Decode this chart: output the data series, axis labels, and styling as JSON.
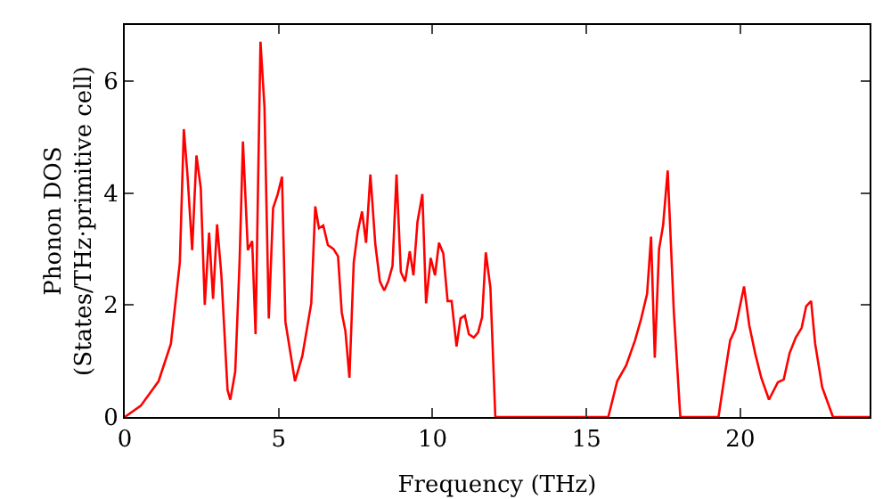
{
  "chart_data": {
    "type": "line",
    "xlabel": "Frequency (THz)",
    "ylabel": "Phonon DOS\n(States/THz·primitive cell)",
    "x": [
      0,
      0.52,
      1.1,
      1.5,
      1.79,
      1.92,
      2.04,
      2.19,
      2.33,
      2.47,
      2.6,
      2.74,
      2.87,
      3.0,
      3.14,
      3.34,
      3.43,
      3.59,
      3.73,
      3.84,
      4.0,
      4.14,
      4.25,
      4.41,
      4.54,
      4.68,
      4.82,
      4.97,
      5.11,
      5.22,
      5.53,
      5.77,
      6.06,
      6.19,
      6.31,
      6.45,
      6.6,
      6.78,
      6.93,
      7.05,
      7.17,
      7.3,
      7.44,
      7.57,
      7.71,
      7.84,
      7.98,
      8.14,
      8.29,
      8.43,
      8.56,
      8.7,
      8.83,
      8.97,
      9.11,
      9.26,
      9.38,
      9.51,
      9.67,
      9.79,
      9.94,
      10.08,
      10.21,
      10.35,
      10.49,
      10.62,
      10.78,
      10.91,
      11.05,
      11.18,
      11.34,
      11.48,
      11.61,
      11.73,
      11.88,
      12.04,
      15.71,
      16.0,
      16.29,
      16.58,
      16.78,
      16.97,
      17.1,
      17.22,
      17.36,
      17.49,
      17.64,
      17.84,
      18.05,
      19.29,
      19.48,
      19.67,
      19.83,
      20.12,
      20.29,
      20.48,
      20.68,
      20.93,
      21.22,
      21.41,
      21.6,
      21.8,
      21.99,
      22.14,
      22.3,
      22.43,
      22.66,
      23.01,
      24.2
    ],
    "series": [
      {
        "color": "#ff0000",
        "values": [
          0,
          0.2,
          0.64,
          1.31,
          2.76,
          5.14,
          4.31,
          2.98,
          4.67,
          4.09,
          2.0,
          3.29,
          2.11,
          3.44,
          2.53,
          0.48,
          0.31,
          0.81,
          2.76,
          4.92,
          2.98,
          3.14,
          1.48,
          6.7,
          5.53,
          1.76,
          3.73,
          3.98,
          4.29,
          1.7,
          0.64,
          1.09,
          2.03,
          3.76,
          3.37,
          3.42,
          3.07,
          3.0,
          2.87,
          1.87,
          1.53,
          0.7,
          2.76,
          3.31,
          3.67,
          3.11,
          4.33,
          3.09,
          2.42,
          2.26,
          2.42,
          2.7,
          4.33,
          2.59,
          2.42,
          2.96,
          2.53,
          3.48,
          3.98,
          2.03,
          2.84,
          2.53,
          3.11,
          2.92,
          2.07,
          2.07,
          1.26,
          1.76,
          1.81,
          1.48,
          1.42,
          1.51,
          1.78,
          2.94,
          2.31,
          0,
          0,
          0.64,
          0.92,
          1.37,
          1.76,
          2.2,
          3.22,
          1.06,
          3.0,
          3.42,
          4.4,
          1.87,
          0,
          0,
          0.7,
          1.37,
          1.56,
          2.33,
          1.64,
          1.14,
          0.7,
          0.31,
          0.62,
          0.67,
          1.14,
          1.42,
          1.59,
          1.98,
          2.07,
          1.31,
          0.53,
          0,
          0
        ]
      }
    ],
    "xlim": [
      0,
      24.2
    ],
    "xticks": [
      0,
      5,
      10,
      15,
      20
    ],
    "ylim": [
      0,
      7
    ],
    "yticks": [
      0,
      2,
      4,
      6
    ],
    "grid": false,
    "line_style": "solid",
    "marker": "none"
  }
}
